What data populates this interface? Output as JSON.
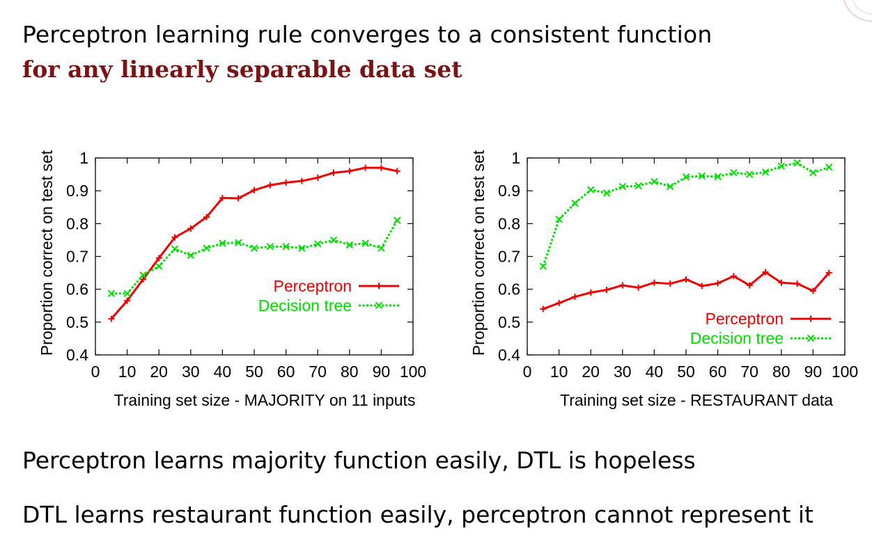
{
  "slide": {
    "title_line1": "Perceptron learning rule converges to a consistent function",
    "title_line2": "for any linearly separable data set",
    "note1": "Perceptron learns majority function easily, DTL is hopeless",
    "note2": "DTL learns restaurant function easily, perceptron cannot represent it"
  },
  "colors": {
    "perceptron": "#ee0000",
    "decision_tree": "#00dd00",
    "title_accent": "#7a1414"
  },
  "chart_data": [
    {
      "type": "line",
      "xlabel": "Training set size - MAJORITY on 11 inputs",
      "ylabel": "Proportion correct on test set",
      "xlim": [
        0,
        100
      ],
      "ylim": [
        0.4,
        1
      ],
      "xticks": [
        0,
        10,
        20,
        30,
        40,
        50,
        60,
        70,
        80,
        90,
        100
      ],
      "yticks": [
        0.4,
        0.5,
        0.6,
        0.7,
        0.8,
        0.9,
        1
      ],
      "ytick_labels": [
        "0.4",
        "0.5",
        "0.6",
        "0.7",
        "0.8",
        "0.9",
        "1"
      ],
      "legend_position": "middle-right",
      "x": [
        5,
        10,
        15,
        20,
        25,
        30,
        35,
        40,
        45,
        50,
        55,
        60,
        65,
        70,
        75,
        80,
        85,
        90,
        95
      ],
      "series": [
        {
          "name": "Perceptron",
          "style": "solid",
          "marker": "plus",
          "values": [
            0.51,
            0.565,
            0.63,
            0.695,
            0.758,
            0.785,
            0.82,
            0.878,
            0.877,
            0.902,
            0.917,
            0.925,
            0.93,
            0.94,
            0.955,
            0.96,
            0.97,
            0.97,
            0.96
          ]
        },
        {
          "name": "Decision tree",
          "style": "dotted",
          "marker": "cross",
          "values": [
            0.587,
            0.587,
            0.643,
            0.67,
            0.723,
            0.703,
            0.725,
            0.74,
            0.742,
            0.725,
            0.73,
            0.73,
            0.725,
            0.738,
            0.75,
            0.735,
            0.74,
            0.725,
            0.81
          ]
        }
      ]
    },
    {
      "type": "line",
      "xlabel": "Training set size - RESTAURANT data",
      "ylabel": "Proportion correct on test set",
      "xlim": [
        0,
        100
      ],
      "ylim": [
        0.4,
        1
      ],
      "xticks": [
        0,
        10,
        20,
        30,
        40,
        50,
        60,
        70,
        80,
        90,
        100
      ],
      "yticks": [
        0.4,
        0.5,
        0.6,
        0.7,
        0.8,
        0.9,
        1
      ],
      "ytick_labels": [
        "0.4",
        "0.5",
        "0.6",
        "0.7",
        "0.8",
        "0.9",
        "1"
      ],
      "legend_position": "bottom-right",
      "x": [
        5,
        10,
        15,
        20,
        25,
        30,
        35,
        40,
        45,
        50,
        55,
        60,
        65,
        70,
        75,
        80,
        85,
        90,
        95
      ],
      "series": [
        {
          "name": "Perceptron",
          "style": "solid",
          "marker": "plus",
          "values": [
            0.54,
            0.558,
            0.577,
            0.59,
            0.598,
            0.612,
            0.605,
            0.62,
            0.617,
            0.63,
            0.61,
            0.618,
            0.64,
            0.612,
            0.652,
            0.62,
            0.617,
            0.595,
            0.65
          ]
        },
        {
          "name": "Decision tree",
          "style": "dotted",
          "marker": "cross",
          "values": [
            0.67,
            0.813,
            0.862,
            0.903,
            0.893,
            0.913,
            0.915,
            0.928,
            0.913,
            0.942,
            0.945,
            0.943,
            0.955,
            0.95,
            0.957,
            0.975,
            0.985,
            0.955,
            0.972
          ]
        }
      ]
    }
  ]
}
